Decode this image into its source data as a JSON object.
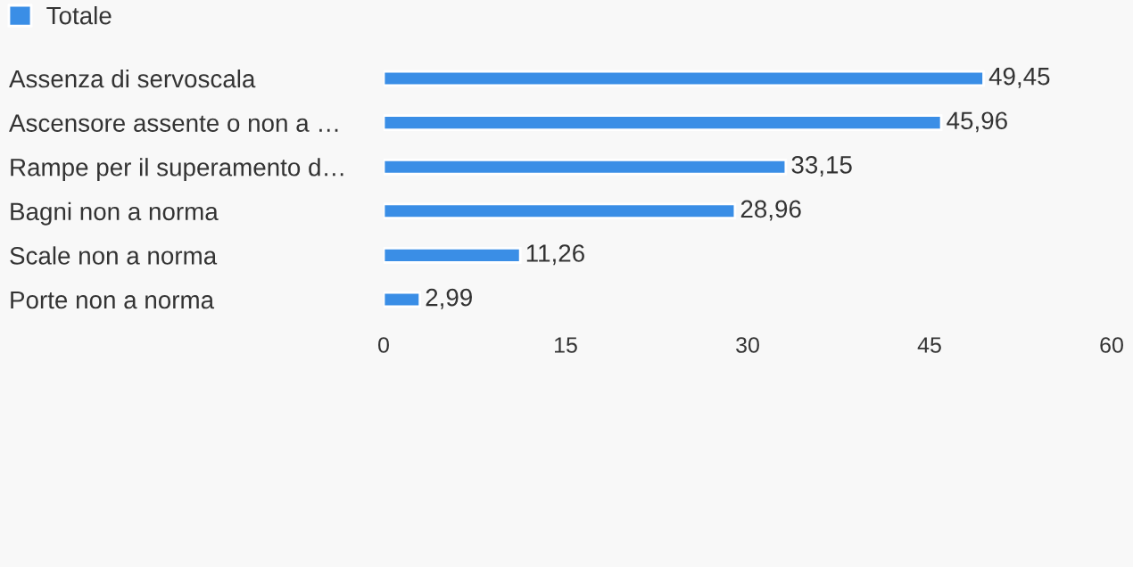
{
  "chart_data": {
    "type": "bar",
    "orientation": "horizontal",
    "categories": [
      "Assenza di servoscala",
      "Ascensore assente o non a …",
      "Rampe per il superamento d…",
      "Bagni non a norma",
      "Scale non a norma",
      "Porte non a norma"
    ],
    "series": [
      {
        "name": "Totale",
        "color": "#3a8ee6",
        "values": [
          49.45,
          45.96,
          33.15,
          28.96,
          11.26,
          2.99
        ],
        "value_labels": [
          "49,45",
          "45,96",
          "33,15",
          "28,96",
          "11,26",
          "2,99"
        ]
      }
    ],
    "xlim": [
      0,
      60
    ],
    "xticks": [
      0,
      15,
      30,
      45,
      60
    ],
    "grid": false,
    "legend": "top left"
  }
}
